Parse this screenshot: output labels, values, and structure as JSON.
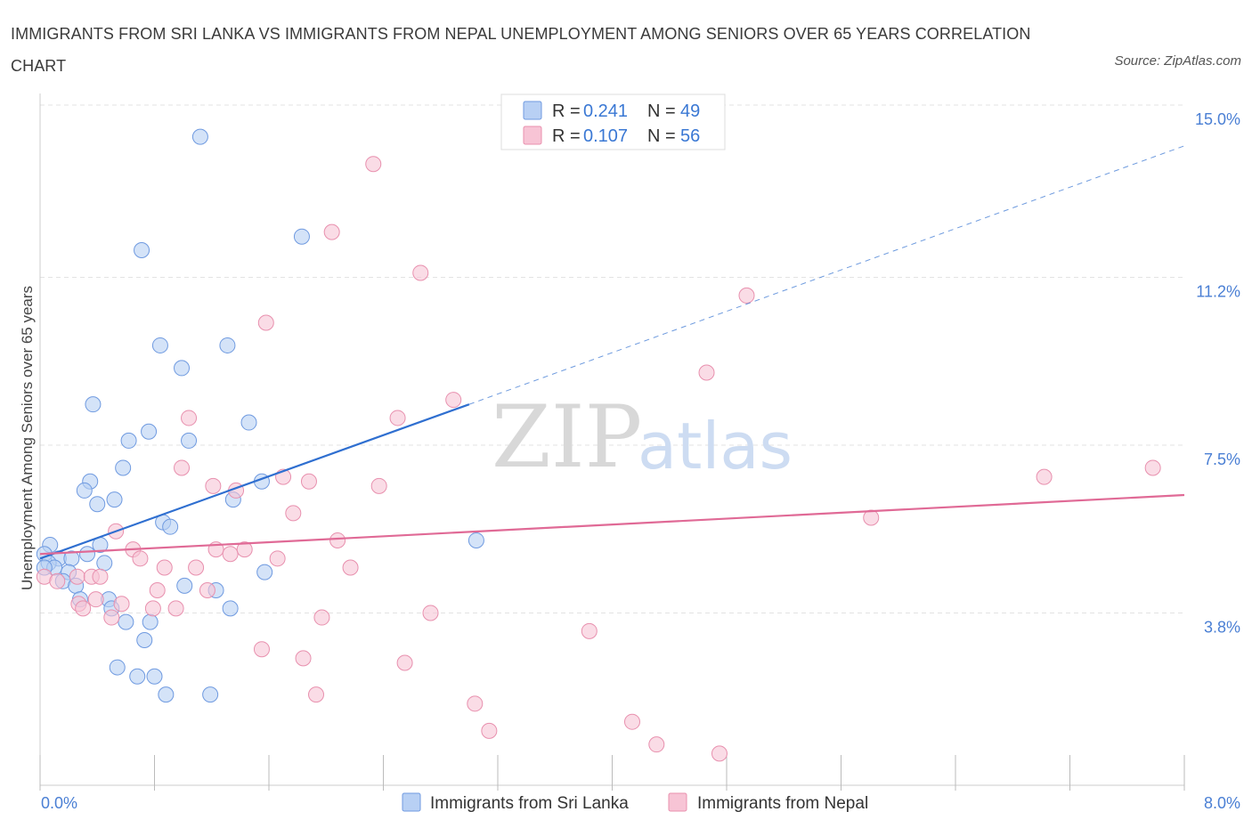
{
  "title": "IMMIGRANTS FROM SRI LANKA VS IMMIGRANTS FROM NEPAL UNEMPLOYMENT AMONG SENIORS OVER 65 YEARS CORRELATION CHART",
  "source": "Source: ZipAtlas.com",
  "watermark": {
    "zip": "ZIP",
    "atlas": "atlas"
  },
  "chart_data": {
    "type": "scatter",
    "title": "IMMIGRANTS FROM SRI LANKA VS IMMIGRANTS FROM NEPAL UNEMPLOYMENT AMONG SENIORS OVER 65 YEARS CORRELATION CHART",
    "ylabel": "Unemployment Among Seniors over 65 years",
    "xlabel": "",
    "xlim": [
      0,
      8.0
    ],
    "ylim": [
      0,
      15.0
    ],
    "x_tick_labels": [
      "0.0%",
      "8.0%"
    ],
    "y_ticks": [
      {
        "value": 3.8,
        "label": "3.8%"
      },
      {
        "value": 7.5,
        "label": "7.5%"
      },
      {
        "value": 11.2,
        "label": "11.2%"
      },
      {
        "value": 15.0,
        "label": "15.0%"
      }
    ],
    "legend": [
      {
        "r_label": "R = ",
        "r_value": "0.241",
        "n_label": "N = ",
        "n_value": "49",
        "color": "#8fb4ec"
      },
      {
        "r_label": "R = ",
        "r_value": "0.107",
        "n_label": "N = ",
        "n_value": "56",
        "color": "#f2a9c2"
      }
    ],
    "series": [
      {
        "name": "Immigrants from Sri Lanka",
        "fill": "#b8d0f4",
        "stroke": "#6f9ae0",
        "trend": {
          "x": [
            0.0,
            3.0
          ],
          "y": [
            5.0,
            8.4
          ],
          "dashed_to": [
            8.0,
            14.1
          ],
          "color": "#2f6fd0"
        },
        "points": [
          [
            1.12,
            14.3
          ],
          [
            1.83,
            12.1
          ],
          [
            0.71,
            11.8
          ],
          [
            0.84,
            9.7
          ],
          [
            1.31,
            9.7
          ],
          [
            0.99,
            9.2
          ],
          [
            0.37,
            8.4
          ],
          [
            1.46,
            8.0
          ],
          [
            0.76,
            7.8
          ],
          [
            0.62,
            7.6
          ],
          [
            1.04,
            7.6
          ],
          [
            0.58,
            7.0
          ],
          [
            0.35,
            6.7
          ],
          [
            0.31,
            6.5
          ],
          [
            1.55,
            6.7
          ],
          [
            0.52,
            6.3
          ],
          [
            0.4,
            6.2
          ],
          [
            1.35,
            6.3
          ],
          [
            0.86,
            5.8
          ],
          [
            0.91,
            5.7
          ],
          [
            0.07,
            5.3
          ],
          [
            0.03,
            5.1
          ],
          [
            0.13,
            5.0
          ],
          [
            0.22,
            5.0
          ],
          [
            0.33,
            5.1
          ],
          [
            0.42,
            5.3
          ],
          [
            0.06,
            4.9
          ],
          [
            0.1,
            4.8
          ],
          [
            0.2,
            4.7
          ],
          [
            0.45,
            4.9
          ],
          [
            0.16,
            4.5
          ],
          [
            0.25,
            4.4
          ],
          [
            0.03,
            4.8
          ],
          [
            1.57,
            4.7
          ],
          [
            0.48,
            4.1
          ],
          [
            0.5,
            3.9
          ],
          [
            1.01,
            4.4
          ],
          [
            1.23,
            4.3
          ],
          [
            1.33,
            3.9
          ],
          [
            0.28,
            4.1
          ],
          [
            3.05,
            5.4
          ],
          [
            0.6,
            3.6
          ],
          [
            0.77,
            3.6
          ],
          [
            0.73,
            3.2
          ],
          [
            0.54,
            2.6
          ],
          [
            0.68,
            2.4
          ],
          [
            0.8,
            2.4
          ],
          [
            0.88,
            2.0
          ],
          [
            1.19,
            2.0
          ]
        ]
      },
      {
        "name": "Immigrants from Nepal",
        "fill": "#f7c4d5",
        "stroke": "#e890ae",
        "trend": {
          "x": [
            0.0,
            8.0
          ],
          "y": [
            5.1,
            6.4
          ],
          "color": "#e06a96"
        },
        "points": [
          [
            2.33,
            13.7
          ],
          [
            2.04,
            12.2
          ],
          [
            2.66,
            11.3
          ],
          [
            4.94,
            10.8
          ],
          [
            1.58,
            10.2
          ],
          [
            4.66,
            9.1
          ],
          [
            2.89,
            8.5
          ],
          [
            1.04,
            8.1
          ],
          [
            2.5,
            8.1
          ],
          [
            0.99,
            7.0
          ],
          [
            1.21,
            6.6
          ],
          [
            1.37,
            6.5
          ],
          [
            1.7,
            6.8
          ],
          [
            1.88,
            6.7
          ],
          [
            2.37,
            6.6
          ],
          [
            7.02,
            6.8
          ],
          [
            7.78,
            7.0
          ],
          [
            1.77,
            6.0
          ],
          [
            5.81,
            5.9
          ],
          [
            0.53,
            5.6
          ],
          [
            0.65,
            5.2
          ],
          [
            1.23,
            5.2
          ],
          [
            1.33,
            5.1
          ],
          [
            1.43,
            5.2
          ],
          [
            2.08,
            5.4
          ],
          [
            0.7,
            5.0
          ],
          [
            1.66,
            5.0
          ],
          [
            0.87,
            4.8
          ],
          [
            1.09,
            4.8
          ],
          [
            2.17,
            4.8
          ],
          [
            0.03,
            4.6
          ],
          [
            0.12,
            4.5
          ],
          [
            0.26,
            4.6
          ],
          [
            0.36,
            4.6
          ],
          [
            0.42,
            4.6
          ],
          [
            0.82,
            4.3
          ],
          [
            1.17,
            4.3
          ],
          [
            0.27,
            4.0
          ],
          [
            0.57,
            4.0
          ],
          [
            0.39,
            4.1
          ],
          [
            0.3,
            3.9
          ],
          [
            0.79,
            3.9
          ],
          [
            0.95,
            3.9
          ],
          [
            0.5,
            3.7
          ],
          [
            1.97,
            3.7
          ],
          [
            2.73,
            3.8
          ],
          [
            3.84,
            3.4
          ],
          [
            1.55,
            3.0
          ],
          [
            1.84,
            2.8
          ],
          [
            2.55,
            2.7
          ],
          [
            1.93,
            2.0
          ],
          [
            3.04,
            1.8
          ],
          [
            3.14,
            1.2
          ],
          [
            4.14,
            1.4
          ],
          [
            4.31,
            0.9
          ],
          [
            4.75,
            0.7
          ]
        ]
      }
    ]
  }
}
